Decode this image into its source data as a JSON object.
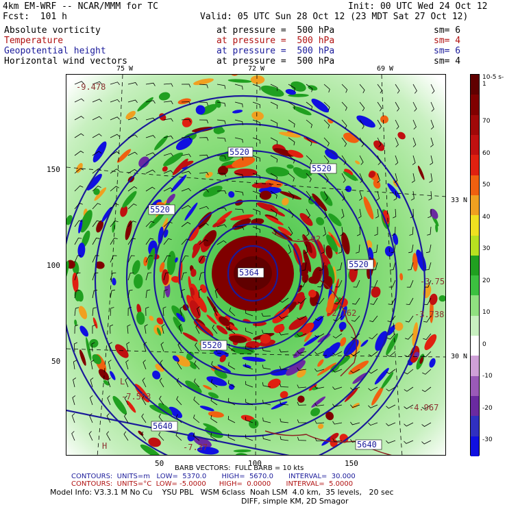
{
  "header": {
    "model": "4km EM-WRF -- NCAR/MMM for TC",
    "init": "Init: 00 UTC Wed 24 Oct 12",
    "fcst": "Fcst:  101 h",
    "valid": "Valid: 05 UTC Sun 28 Oct 12 (23 MDT Sat 27 Oct 12)"
  },
  "fields": [
    {
      "name": "Absolute vorticity",
      "level": "at pressure =  500 hPa",
      "sm": "sm= 6",
      "color": "#000000"
    },
    {
      "name": "Temperature",
      "level": "at pressure =  500 hPa",
      "sm": "sm= 4",
      "color": "#b01010"
    },
    {
      "name": "Geopotential height",
      "level": "at pressure =  500 hPa",
      "sm": "sm= 6",
      "color": "#1a1a9a"
    },
    {
      "name": "Horizontal wind vectors",
      "level": "at pressure =  500 hPa",
      "sm": "sm= 4",
      "color": "#000000"
    }
  ],
  "map": {
    "lon_labels": [
      "75 W",
      "72 W",
      "69 W"
    ],
    "lat_labels": [
      "33 N",
      "30 N"
    ],
    "y_ticks": [
      "150",
      "100",
      "50"
    ],
    "x_ticks": [
      "50",
      "100",
      "150"
    ],
    "height_contour_labels": [
      "5520",
      "5520",
      "5520",
      "5520",
      "5520",
      "5640",
      "5640",
      "5364"
    ],
    "temp_labels": [
      "-9.478",
      "-7.553",
      "-7.37",
      "-4.967",
      "-3.738",
      "-3.75",
      "-2.762",
      "-1.02"
    ],
    "low_marker": "L",
    "high_marker": "H"
  },
  "colorbar": {
    "unit": "10-5 s-1",
    "labels": [
      "70",
      "60",
      "50",
      "40",
      "30",
      "20",
      "10",
      "0",
      "-10",
      "-20",
      "-30"
    ],
    "colors": [
      "#1010e0",
      "#3030c0",
      "#6a2aa0",
      "#9a5ab8",
      "#cfa0d8",
      "#ffffff",
      "#c8f0c0",
      "#90e080",
      "#3cc040",
      "#20a020",
      "#b8e020",
      "#f0e020",
      "#f0a020",
      "#f06010",
      "#e02010",
      "#c01010",
      "#a00808",
      "#800000",
      "#600000"
    ]
  },
  "footer": {
    "barb": "BARB VECTORS:  FULL BARB = 10 kts",
    "contours1": "CONTOURS:  UNITS=m   LOW=  5370.0       HIGH=  5670.0       INTERVAL=  30.000",
    "contours2": "CONTOURS:  UNITS=°C  LOW= -5.0000      HIGH=  0.0000       INTERVAL=  5.0000",
    "model_info": "Model Info: V3.3.1 M No Cu    YSU PBL   WSM 6class  Noah LSM  4.0 km,  35 levels,   20 sec",
    "diff": "DIFF, simple KM, 2D Smagor"
  }
}
